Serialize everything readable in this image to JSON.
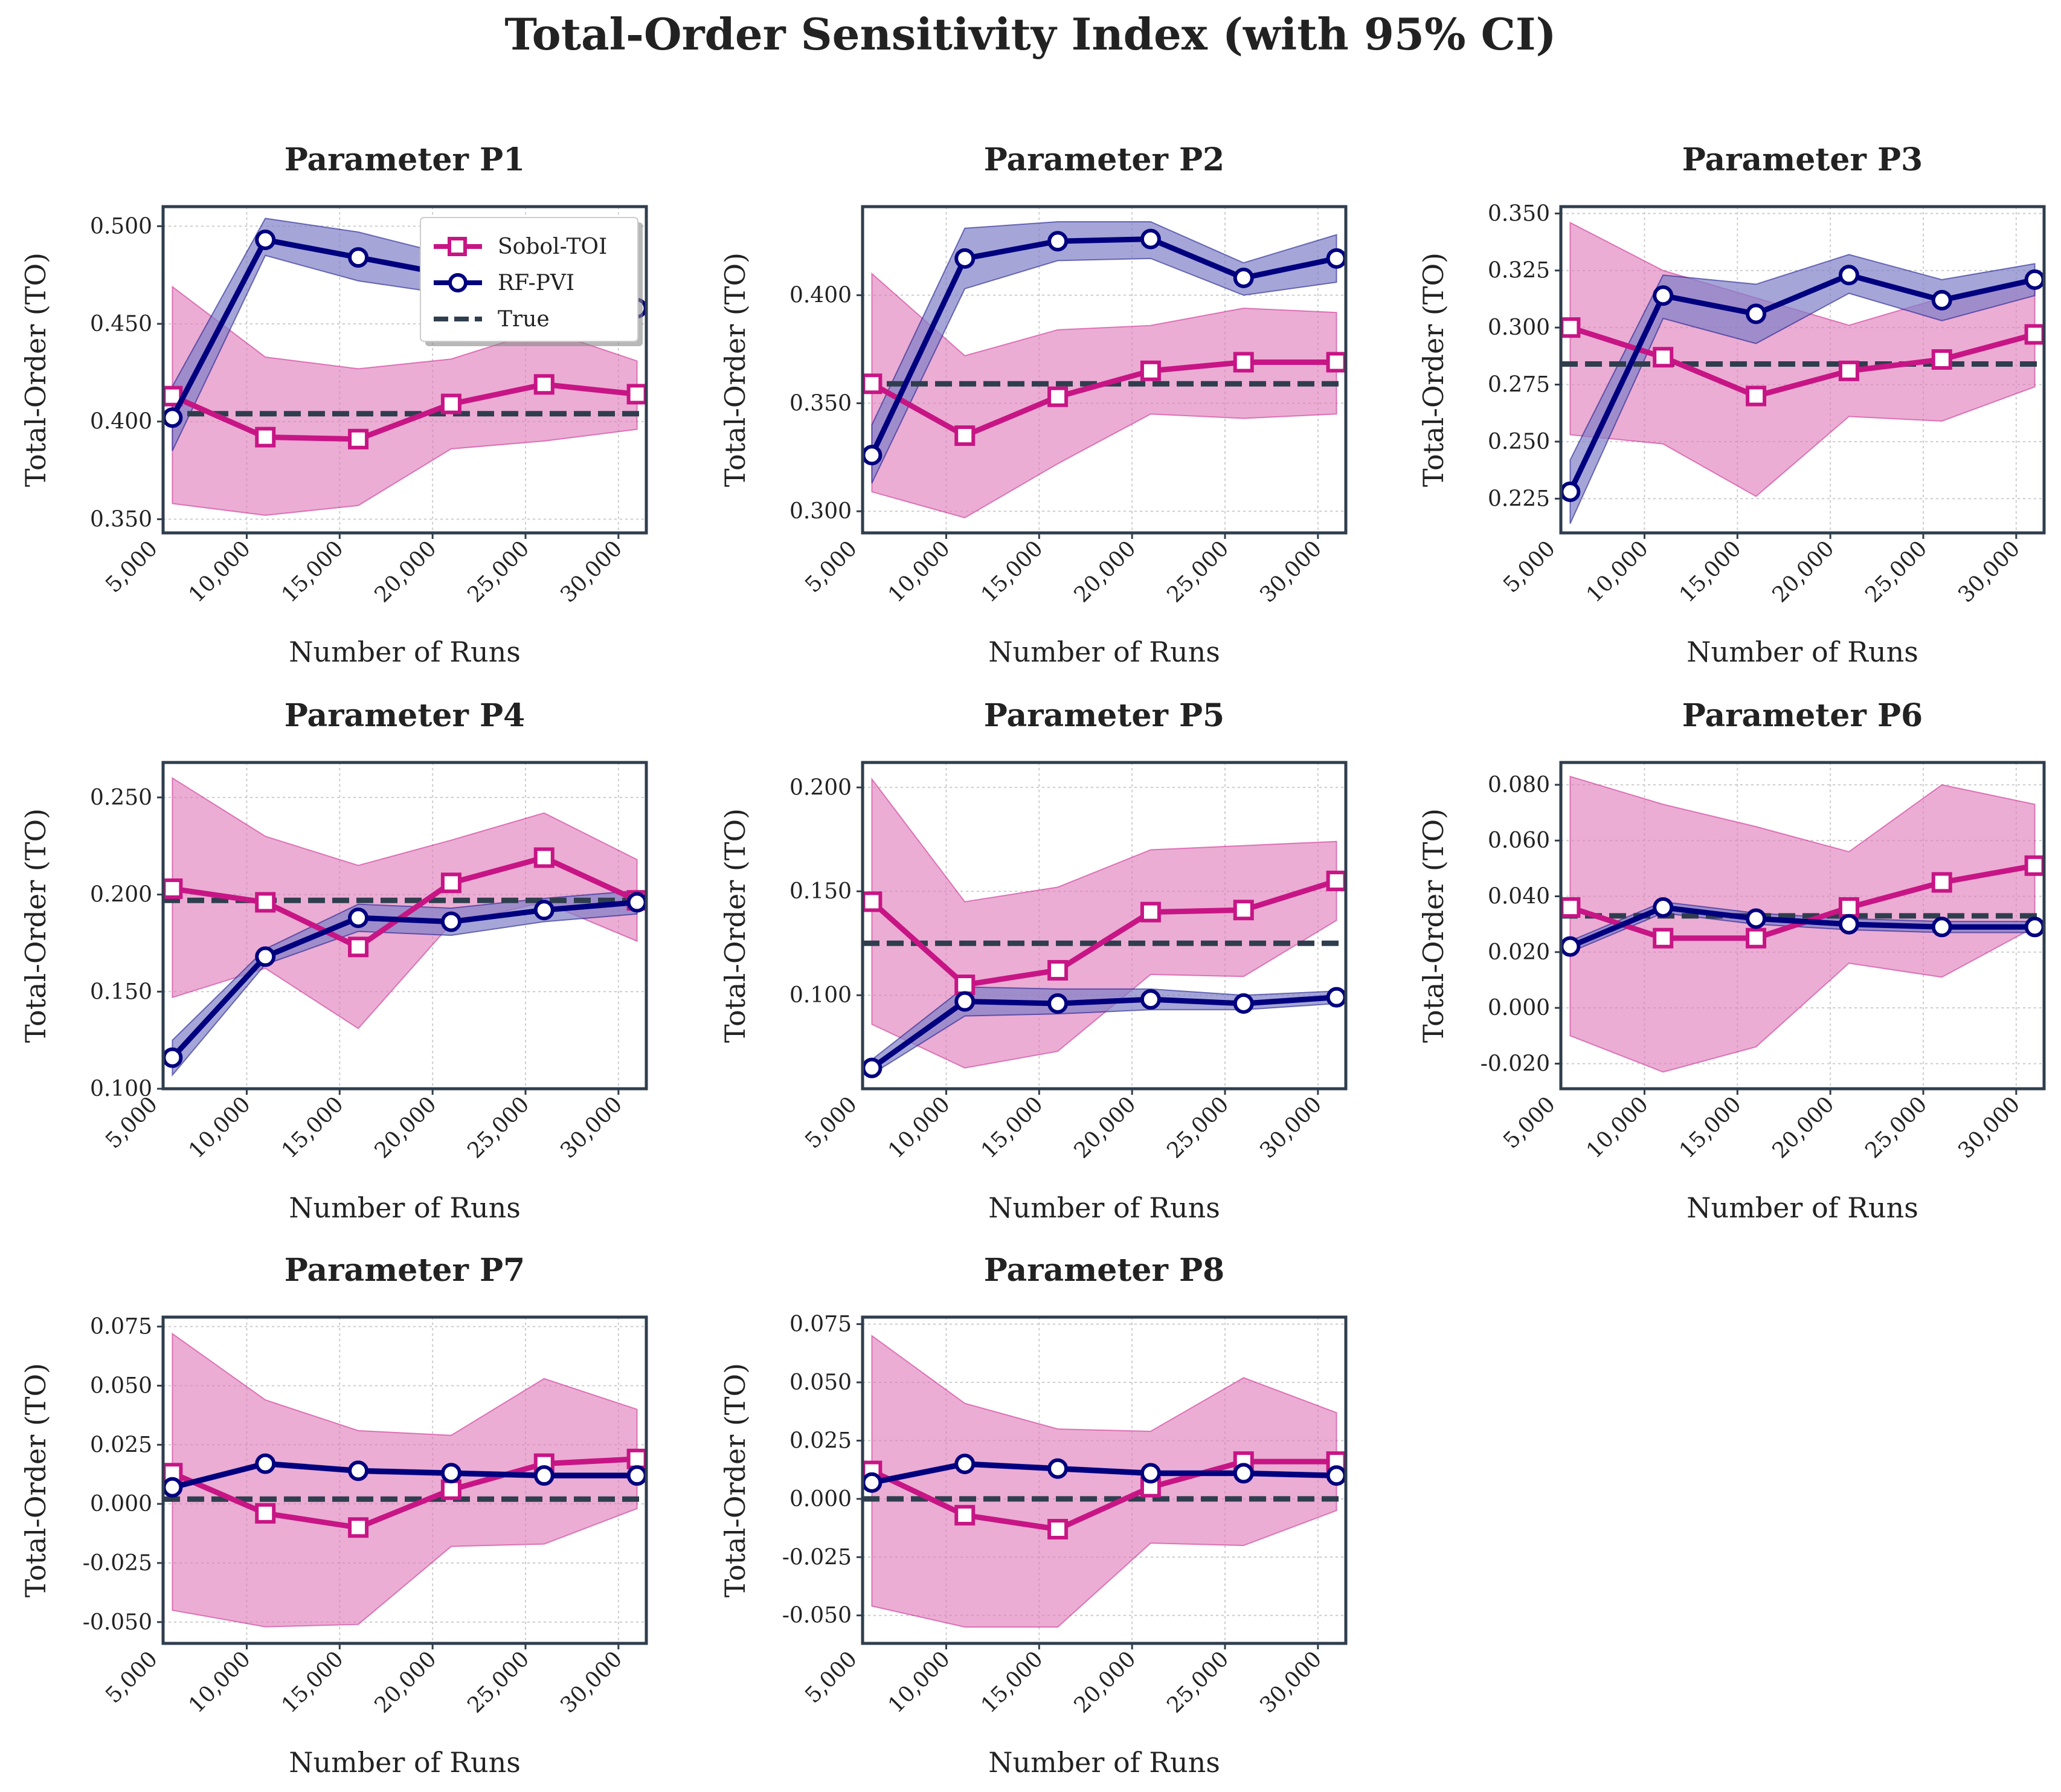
{
  "figure": {
    "title": "Total-Order Sensitivity Index (with 95% CI)",
    "xlabel": "Number of Runs",
    "ylabel": "Total-Order (TO)"
  },
  "colors": {
    "sobol": "#c71585",
    "sobol_fill": "#de77b8",
    "rf": "#00007f",
    "rf_fill": "#7f7fc8",
    "true": "#2f3e4e",
    "axes": "#2f3e4e",
    "grid": "#cccccc"
  },
  "legend": {
    "location": "upper right",
    "entries": [
      "Sobol-TOI",
      "RF-PVI",
      "True"
    ]
  },
  "chart_data": [
    {
      "type": "line",
      "title": "Parameter P1",
      "x": [
        6000,
        11000,
        16000,
        21000,
        26000,
        31000
      ],
      "xticks": [
        5000,
        10000,
        15000,
        20000,
        25000,
        30000
      ],
      "xtick_labels": [
        "5,000",
        "10,000",
        "15,000",
        "20,000",
        "25,000",
        "30,000"
      ],
      "xlim": [
        5500,
        31500
      ],
      "ylim": [
        0.343,
        0.51
      ],
      "yticks": [
        0.35,
        0.4,
        0.45,
        0.5
      ],
      "ytick_labels": [
        "0.350",
        "0.400",
        "0.450",
        "0.500"
      ],
      "true": 0.404,
      "grid": true,
      "legend": true,
      "series": [
        {
          "name": "Sobol-TOI",
          "values": [
            0.413,
            0.392,
            0.391,
            0.409,
            0.419,
            0.414
          ],
          "lower": [
            0.358,
            0.352,
            0.357,
            0.386,
            0.39,
            0.396
          ],
          "upper": [
            0.469,
            0.433,
            0.427,
            0.432,
            0.447,
            0.431
          ]
        },
        {
          "name": "RF-PVI",
          "values": [
            0.402,
            0.493,
            0.484,
            0.475,
            0.467,
            0.458
          ],
          "lower": [
            0.385,
            0.485,
            0.472,
            0.465,
            0.457,
            0.449
          ],
          "upper": [
            0.418,
            0.504,
            0.497,
            0.485,
            0.478,
            0.468
          ]
        }
      ]
    },
    {
      "type": "line",
      "title": "Parameter P2",
      "x": [
        6000,
        11000,
        16000,
        21000,
        26000,
        31000
      ],
      "xticks": [
        5000,
        10000,
        15000,
        20000,
        25000,
        30000
      ],
      "xtick_labels": [
        "5,000",
        "10,000",
        "15,000",
        "20,000",
        "25,000",
        "30,000"
      ],
      "xlim": [
        5500,
        31500
      ],
      "ylim": [
        0.29,
        0.441
      ],
      "yticks": [
        0.3,
        0.35,
        0.4
      ],
      "ytick_labels": [
        "0.300",
        "0.350",
        "0.400"
      ],
      "true": 0.359,
      "grid": true,
      "legend": false,
      "series": [
        {
          "name": "Sobol-TOI",
          "values": [
            0.359,
            0.335,
            0.353,
            0.365,
            0.369,
            0.369
          ],
          "lower": [
            0.309,
            0.297,
            0.322,
            0.345,
            0.343,
            0.345
          ],
          "upper": [
            0.41,
            0.372,
            0.384,
            0.386,
            0.394,
            0.392
          ]
        },
        {
          "name": "RF-PVI",
          "values": [
            0.326,
            0.417,
            0.425,
            0.426,
            0.408,
            0.417
          ],
          "lower": [
            0.313,
            0.403,
            0.416,
            0.417,
            0.4,
            0.406
          ],
          "upper": [
            0.34,
            0.431,
            0.434,
            0.434,
            0.415,
            0.428
          ]
        }
      ]
    },
    {
      "type": "line",
      "title": "Parameter P3",
      "x": [
        6000,
        11000,
        16000,
        21000,
        26000,
        31000
      ],
      "xticks": [
        5000,
        10000,
        15000,
        20000,
        25000,
        30000
      ],
      "xtick_labels": [
        "5,000",
        "10,000",
        "15,000",
        "20,000",
        "25,000",
        "30,000"
      ],
      "xlim": [
        5500,
        31500
      ],
      "ylim": [
        0.21,
        0.353
      ],
      "yticks": [
        0.225,
        0.25,
        0.275,
        0.3,
        0.325,
        0.35
      ],
      "ytick_labels": [
        "0.225",
        "0.250",
        "0.275",
        "0.300",
        "0.325",
        "0.350"
      ],
      "true": 0.284,
      "grid": true,
      "legend": false,
      "series": [
        {
          "name": "Sobol-TOI",
          "values": [
            0.3,
            0.287,
            0.27,
            0.281,
            0.286,
            0.297
          ],
          "lower": [
            0.253,
            0.249,
            0.226,
            0.261,
            0.259,
            0.274
          ],
          "upper": [
            0.346,
            0.325,
            0.313,
            0.301,
            0.313,
            0.321
          ]
        },
        {
          "name": "RF-PVI",
          "values": [
            0.228,
            0.314,
            0.306,
            0.323,
            0.312,
            0.321
          ],
          "lower": [
            0.214,
            0.304,
            0.293,
            0.315,
            0.303,
            0.314
          ],
          "upper": [
            0.242,
            0.323,
            0.319,
            0.332,
            0.321,
            0.328
          ]
        }
      ]
    },
    {
      "type": "line",
      "title": "Parameter P4",
      "x": [
        6000,
        11000,
        16000,
        21000,
        26000,
        31000
      ],
      "xticks": [
        5000,
        10000,
        15000,
        20000,
        25000,
        30000
      ],
      "xtick_labels": [
        "5,000",
        "10,000",
        "15,000",
        "20,000",
        "25,000",
        "30,000"
      ],
      "xlim": [
        5500,
        31500
      ],
      "ylim": [
        0.1,
        0.268
      ],
      "yticks": [
        0.1,
        0.15,
        0.2,
        0.25
      ],
      "ytick_labels": [
        "0.100",
        "0.150",
        "0.200",
        "0.250"
      ],
      "true": 0.197,
      "grid": true,
      "legend": false,
      "series": [
        {
          "name": "Sobol-TOI",
          "values": [
            0.203,
            0.196,
            0.173,
            0.206,
            0.219,
            0.197
          ],
          "lower": [
            0.147,
            0.162,
            0.131,
            0.185,
            0.196,
            0.176
          ],
          "upper": [
            0.26,
            0.23,
            0.215,
            0.228,
            0.242,
            0.218
          ]
        },
        {
          "name": "RF-PVI",
          "values": [
            0.116,
            0.168,
            0.188,
            0.186,
            0.192,
            0.196
          ],
          "lower": [
            0.107,
            0.164,
            0.181,
            0.179,
            0.186,
            0.19
          ],
          "upper": [
            0.125,
            0.172,
            0.195,
            0.193,
            0.198,
            0.202
          ]
        }
      ]
    },
    {
      "type": "line",
      "title": "Parameter P5",
      "x": [
        6000,
        11000,
        16000,
        21000,
        26000,
        31000
      ],
      "xticks": [
        5000,
        10000,
        15000,
        20000,
        25000,
        30000
      ],
      "xtick_labels": [
        "5,000",
        "10,000",
        "15,000",
        "20,000",
        "25,000",
        "30,000"
      ],
      "xlim": [
        5500,
        31500
      ],
      "ylim": [
        0.055,
        0.212
      ],
      "yticks": [
        0.1,
        0.15,
        0.2
      ],
      "ytick_labels": [
        "0.100",
        "0.150",
        "0.200"
      ],
      "true": 0.125,
      "grid": true,
      "legend": false,
      "series": [
        {
          "name": "Sobol-TOI",
          "values": [
            0.145,
            0.105,
            0.112,
            0.14,
            0.141,
            0.155
          ],
          "lower": [
            0.086,
            0.065,
            0.073,
            0.11,
            0.109,
            0.136
          ],
          "upper": [
            0.204,
            0.145,
            0.152,
            0.17,
            0.172,
            0.174
          ]
        },
        {
          "name": "RF-PVI",
          "values": [
            0.065,
            0.097,
            0.096,
            0.098,
            0.096,
            0.099
          ],
          "lower": [
            0.062,
            0.09,
            0.091,
            0.093,
            0.093,
            0.096
          ],
          "upper": [
            0.069,
            0.104,
            0.103,
            0.103,
            0.1,
            0.102
          ]
        }
      ]
    },
    {
      "type": "line",
      "title": "Parameter P6",
      "x": [
        6000,
        11000,
        16000,
        21000,
        26000,
        31000
      ],
      "xticks": [
        5000,
        10000,
        15000,
        20000,
        25000,
        30000
      ],
      "xtick_labels": [
        "5,000",
        "10,000",
        "15,000",
        "20,000",
        "25,000",
        "30,000"
      ],
      "xlim": [
        5500,
        31500
      ],
      "ylim": [
        -0.029,
        0.088
      ],
      "yticks": [
        -0.02,
        0,
        0.02,
        0.04,
        0.06,
        0.08
      ],
      "ytick_labels": [
        "-0.020",
        "0.000",
        "0.020",
        "0.040",
        "0.060",
        "0.080"
      ],
      "true": 0.033,
      "grid": true,
      "legend": false,
      "series": [
        {
          "name": "Sobol-TOI",
          "values": [
            0.036,
            0.025,
            0.025,
            0.036,
            0.045,
            0.051
          ],
          "lower": [
            -0.01,
            -0.023,
            -0.014,
            0.016,
            0.011,
            0.029
          ],
          "upper": [
            0.083,
            0.073,
            0.065,
            0.056,
            0.08,
            0.073
          ]
        },
        {
          "name": "RF-PVI",
          "values": [
            0.022,
            0.036,
            0.032,
            0.03,
            0.029,
            0.029
          ],
          "lower": [
            0.02,
            0.034,
            0.03,
            0.028,
            0.027,
            0.027
          ],
          "upper": [
            0.024,
            0.038,
            0.034,
            0.032,
            0.031,
            0.031
          ]
        }
      ]
    },
    {
      "type": "line",
      "title": "Parameter P7",
      "x": [
        6000,
        11000,
        16000,
        21000,
        26000,
        31000
      ],
      "xticks": [
        5000,
        10000,
        15000,
        20000,
        25000,
        30000
      ],
      "xtick_labels": [
        "5,000",
        "10,000",
        "15,000",
        "20,000",
        "25,000",
        "30,000"
      ],
      "xlim": [
        5500,
        31500
      ],
      "ylim": [
        -0.059,
        0.079
      ],
      "yticks": [
        -0.05,
        -0.025,
        0,
        0.025,
        0.05,
        0.075
      ],
      "ytick_labels": [
        "-0.050",
        "-0.025",
        "0.000",
        "0.025",
        "0.050",
        "0.075"
      ],
      "true": 0.002,
      "grid": true,
      "legend": false,
      "series": [
        {
          "name": "Sobol-TOI",
          "values": [
            0.013,
            -0.004,
            -0.01,
            0.006,
            0.017,
            0.019
          ],
          "lower": [
            -0.045,
            -0.052,
            -0.051,
            -0.018,
            -0.017,
            -0.002
          ],
          "upper": [
            0.072,
            0.044,
            0.031,
            0.029,
            0.053,
            0.04
          ]
        },
        {
          "name": "RF-PVI",
          "values": [
            0.007,
            0.017,
            0.014,
            0.013,
            0.012,
            0.012
          ],
          "lower": [
            0.006,
            0.016,
            0.013,
            0.012,
            0.011,
            0.011
          ],
          "upper": [
            0.008,
            0.018,
            0.015,
            0.014,
            0.013,
            0.013
          ]
        }
      ]
    },
    {
      "type": "line",
      "title": "Parameter P8",
      "x": [
        6000,
        11000,
        16000,
        21000,
        26000,
        31000
      ],
      "xticks": [
        5000,
        10000,
        15000,
        20000,
        25000,
        30000
      ],
      "xtick_labels": [
        "5,000",
        "10,000",
        "15,000",
        "20,000",
        "25,000",
        "30,000"
      ],
      "xlim": [
        5500,
        31500
      ],
      "ylim": [
        -0.062,
        0.078
      ],
      "yticks": [
        -0.05,
        -0.025,
        0,
        0.025,
        0.05,
        0.075
      ],
      "ytick_labels": [
        "-0.050",
        "-0.025",
        "0.000",
        "0.025",
        "0.050",
        "0.075"
      ],
      "true": 0.0,
      "grid": true,
      "legend": false,
      "series": [
        {
          "name": "Sobol-TOI",
          "values": [
            0.012,
            -0.007,
            -0.013,
            0.005,
            0.016,
            0.016
          ],
          "lower": [
            -0.046,
            -0.055,
            -0.055,
            -0.019,
            -0.02,
            -0.005
          ],
          "upper": [
            0.07,
            0.041,
            0.03,
            0.029,
            0.052,
            0.037
          ]
        },
        {
          "name": "RF-PVI",
          "values": [
            0.007,
            0.015,
            0.013,
            0.011,
            0.011,
            0.01
          ],
          "lower": [
            0.006,
            0.014,
            0.012,
            0.01,
            0.01,
            0.009
          ],
          "upper": [
            0.008,
            0.016,
            0.014,
            0.012,
            0.012,
            0.011
          ]
        }
      ]
    }
  ]
}
